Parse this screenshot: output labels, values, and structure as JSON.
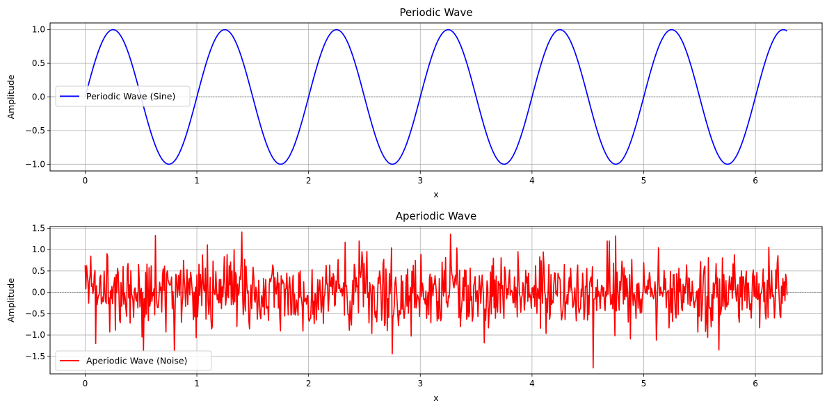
{
  "chart_data": [
    {
      "type": "line",
      "title": "Periodic Wave",
      "xlabel": "x",
      "ylabel": "Amplitude",
      "xlim": [
        -0.314,
        6.597
      ],
      "ylim": [
        -1.1,
        1.1
      ],
      "xticks": [
        0,
        1,
        2,
        3,
        4,
        5,
        6
      ],
      "xtick_labels": [
        "0",
        "1",
        "2",
        "3",
        "4",
        "5",
        "6"
      ],
      "yticks": [
        -1.0,
        -0.5,
        0.0,
        0.5,
        1.0
      ],
      "ytick_labels": [
        "−1.0",
        "−0.5",
        "0.0",
        "0.5",
        "1.0"
      ],
      "grid": true,
      "zero_line": true,
      "legend_position": "center-left",
      "series": [
        {
          "name": "Periodic Wave (Sine)",
          "color": "#0000ff",
          "function": "sin(2*pi*x)",
          "x_range": [
            0,
            6.2832
          ],
          "n_points": 1000
        }
      ]
    },
    {
      "type": "line",
      "title": "Aperiodic Wave",
      "xlabel": "x",
      "ylabel": "Amplitude",
      "xlim": [
        -0.314,
        6.597
      ],
      "ylim": [
        -1.91,
        1.54
      ],
      "xticks": [
        0,
        1,
        2,
        3,
        4,
        5,
        6
      ],
      "xtick_labels": [
        "0",
        "1",
        "2",
        "3",
        "4",
        "5",
        "6"
      ],
      "yticks": [
        -1.5,
        -1.0,
        -0.5,
        0.0,
        0.5,
        1.0,
        1.5
      ],
      "ytick_labels": [
        "−1.5",
        "−1.0",
        "−0.5",
        "0.0",
        "0.5",
        "1.0",
        "1.5"
      ],
      "grid": true,
      "zero_line": true,
      "legend_position": "lower-left",
      "series": [
        {
          "name": "Aperiodic Wave (Noise)",
          "color": "#ff0000",
          "description_of_values": "random noise, approx. mean 0, std 0.5",
          "x_range": [
            0,
            6.2832
          ],
          "n_points": 1000,
          "extremes": [
            {
              "x": 1.4,
              "y": 1.41
            },
            {
              "x": 3.27,
              "y": 1.36
            },
            {
              "x": 0.63,
              "y": 1.33
            },
            {
              "x": 4.75,
              "y": 1.32
            },
            {
              "x": 4.55,
              "y": -1.77
            },
            {
              "x": 2.75,
              "y": -1.44
            },
            {
              "x": 0.8,
              "y": -1.4
            },
            {
              "x": 0.52,
              "y": -1.38
            },
            {
              "x": 5.67,
              "y": -1.35
            }
          ]
        }
      ]
    }
  ]
}
